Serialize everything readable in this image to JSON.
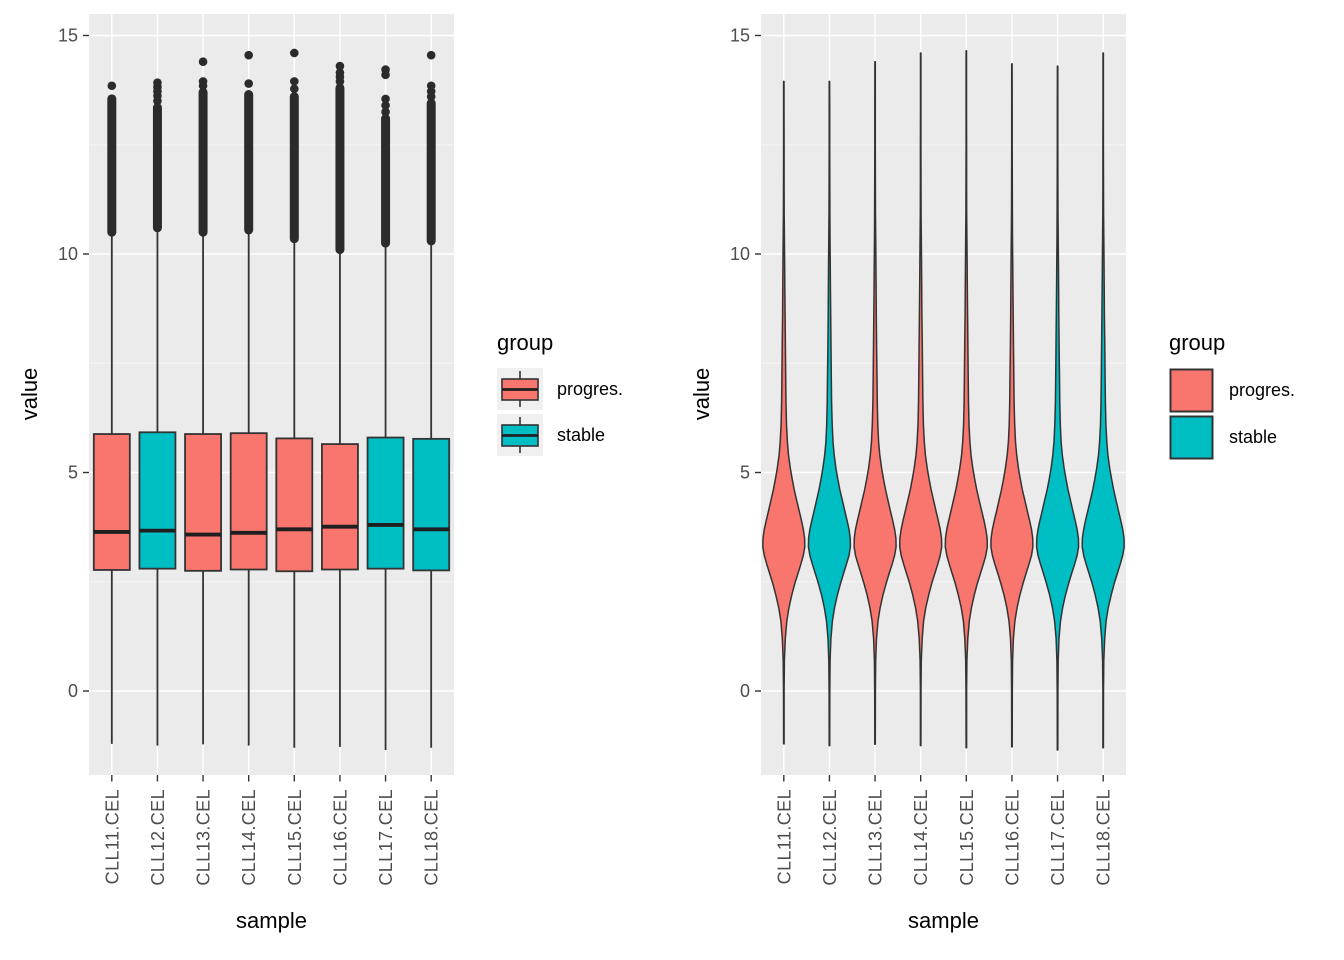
{
  "legend": {
    "title": "group",
    "items": [
      {
        "label": "progres.",
        "color": "#F8766D"
      },
      {
        "label": "stable",
        "color": "#00BFC4"
      }
    ]
  },
  "style": {
    "panel_bg": "#EBEBEB",
    "grid_major": "#FFFFFF",
    "grid_minor": "#F5F5F5",
    "outline": "#333333",
    "median_color": "#1F1F1F",
    "outlier_color": "#2B2B2B",
    "tick_text": "#4D4D4D",
    "title_text": "#000000",
    "legend_key_bg": "#F0F0F0"
  },
  "chart_data": [
    {
      "type": "boxplot",
      "xlabel": "sample",
      "ylabel": "value",
      "ylim": [
        -2,
        15.5
      ],
      "yticks": [
        0,
        5,
        10,
        15
      ],
      "yticks_minor": [
        2.5,
        7.5,
        12.5
      ],
      "legend_position": "right",
      "grid": true,
      "categories": [
        "CLL11.CEL",
        "CLL12.CEL",
        "CLL13.CEL",
        "CLL14.CEL",
        "CLL15.CEL",
        "CLL16.CEL",
        "CLL17.CEL",
        "CLL18.CEL"
      ],
      "samples": [
        {
          "name": "CLL11.CEL",
          "group": "progres.",
          "q1": 2.77,
          "median": 3.64,
          "q3": 5.88,
          "whisker_low": -1.21,
          "whisker_high": 10.42,
          "outlier_band": [
            10.5,
            13.55
          ],
          "outlier_points": [
            13.85
          ]
        },
        {
          "name": "CLL12.CEL",
          "group": "stable",
          "q1": 2.8,
          "median": 3.67,
          "q3": 5.92,
          "whisker_low": -1.25,
          "whisker_high": 10.5,
          "outlier_band": [
            10.6,
            13.35
          ],
          "outlier_points": [
            13.5,
            13.62,
            13.72,
            13.82,
            13.92
          ]
        },
        {
          "name": "CLL13.CEL",
          "group": "progres.",
          "q1": 2.75,
          "median": 3.58,
          "q3": 5.88,
          "whisker_low": -1.22,
          "whisker_high": 10.44,
          "outlier_band": [
            10.5,
            13.7
          ],
          "outlier_points": [
            13.85,
            13.95,
            14.4
          ]
        },
        {
          "name": "CLL14.CEL",
          "group": "progres.",
          "q1": 2.78,
          "median": 3.62,
          "q3": 5.9,
          "whisker_low": -1.25,
          "whisker_high": 10.48,
          "outlier_band": [
            10.55,
            13.65
          ],
          "outlier_points": [
            13.9,
            14.55
          ]
        },
        {
          "name": "CLL15.CEL",
          "group": "progres.",
          "q1": 2.74,
          "median": 3.7,
          "q3": 5.78,
          "whisker_low": -1.3,
          "whisker_high": 10.3,
          "outlier_band": [
            10.35,
            13.6
          ],
          "outlier_points": [
            13.78,
            13.95,
            14.6
          ]
        },
        {
          "name": "CLL16.CEL",
          "group": "progres.",
          "q1": 2.78,
          "median": 3.76,
          "q3": 5.65,
          "whisker_low": -1.28,
          "whisker_high": 10.02,
          "outlier_band": [
            10.1,
            13.8
          ],
          "outlier_points": [
            13.95,
            14.05,
            14.15,
            14.3
          ]
        },
        {
          "name": "CLL17.CEL",
          "group": "stable",
          "q1": 2.8,
          "median": 3.8,
          "q3": 5.8,
          "whisker_low": -1.35,
          "whisker_high": 10.2,
          "outlier_band": [
            10.25,
            13.1
          ],
          "outlier_points": [
            13.25,
            13.4,
            13.55,
            14.1,
            14.22
          ]
        },
        {
          "name": "CLL18.CEL",
          "group": "stable",
          "q1": 2.76,
          "median": 3.7,
          "q3": 5.77,
          "whisker_low": -1.3,
          "whisker_high": 10.28,
          "outlier_band": [
            10.3,
            13.45
          ],
          "outlier_points": [
            13.6,
            13.72,
            13.85,
            14.55
          ]
        }
      ]
    },
    {
      "type": "violin",
      "xlabel": "sample",
      "ylabel": "value",
      "ylim": [
        -2,
        15.5
      ],
      "yticks": [
        0,
        5,
        10,
        15
      ],
      "yticks_minor": [
        2.5,
        7.5,
        12.5
      ],
      "legend_position": "right",
      "grid": true,
      "categories": [
        "CLL11.CEL",
        "CLL12.CEL",
        "CLL13.CEL",
        "CLL14.CEL",
        "CLL15.CEL",
        "CLL16.CEL",
        "CLL17.CEL",
        "CLL18.CEL"
      ],
      "samples": [
        {
          "name": "CLL11.CEL",
          "group": "progres.",
          "min": -1.21,
          "max": 13.95
        },
        {
          "name": "CLL12.CEL",
          "group": "stable",
          "min": -1.25,
          "max": 13.95
        },
        {
          "name": "CLL13.CEL",
          "group": "progres.",
          "min": -1.22,
          "max": 14.4
        },
        {
          "name": "CLL14.CEL",
          "group": "progres.",
          "min": -1.25,
          "max": 14.6
        },
        {
          "name": "CLL15.CEL",
          "group": "progres.",
          "min": -1.3,
          "max": 14.65
        },
        {
          "name": "CLL16.CEL",
          "group": "progres.",
          "min": -1.28,
          "max": 14.35
        },
        {
          "name": "CLL17.CEL",
          "group": "stable",
          "min": -1.35,
          "max": 14.3
        },
        {
          "name": "CLL18.CEL",
          "group": "stable",
          "min": -1.3,
          "max": 14.6
        }
      ],
      "width_profile": [
        [
          0.0,
          0.016
        ],
        [
          0.7,
          0.03
        ],
        [
          1.2,
          0.07
        ],
        [
          1.6,
          0.14
        ],
        [
          1.9,
          0.24
        ],
        [
          2.2,
          0.38
        ],
        [
          2.45,
          0.52
        ],
        [
          2.7,
          0.68
        ],
        [
          2.9,
          0.81
        ],
        [
          3.1,
          0.93
        ],
        [
          3.3,
          1.0
        ],
        [
          3.5,
          0.99
        ],
        [
          3.7,
          0.93
        ],
        [
          3.9,
          0.84
        ],
        [
          4.1,
          0.74
        ],
        [
          4.35,
          0.62
        ],
        [
          4.6,
          0.5
        ],
        [
          4.85,
          0.4
        ],
        [
          5.1,
          0.31
        ],
        [
          5.4,
          0.225
        ],
        [
          5.7,
          0.17
        ],
        [
          6.1,
          0.13
        ],
        [
          6.6,
          0.105
        ],
        [
          7.2,
          0.09
        ],
        [
          7.9,
          0.075
        ],
        [
          8.6,
          0.06
        ],
        [
          9.3,
          0.048
        ],
        [
          9.9,
          0.038
        ],
        [
          10.4,
          0.028
        ],
        [
          10.9,
          0.02
        ],
        [
          11.6,
          0.015
        ],
        [
          12.5,
          0.012
        ],
        [
          13.3,
          0.011
        ]
      ]
    }
  ]
}
